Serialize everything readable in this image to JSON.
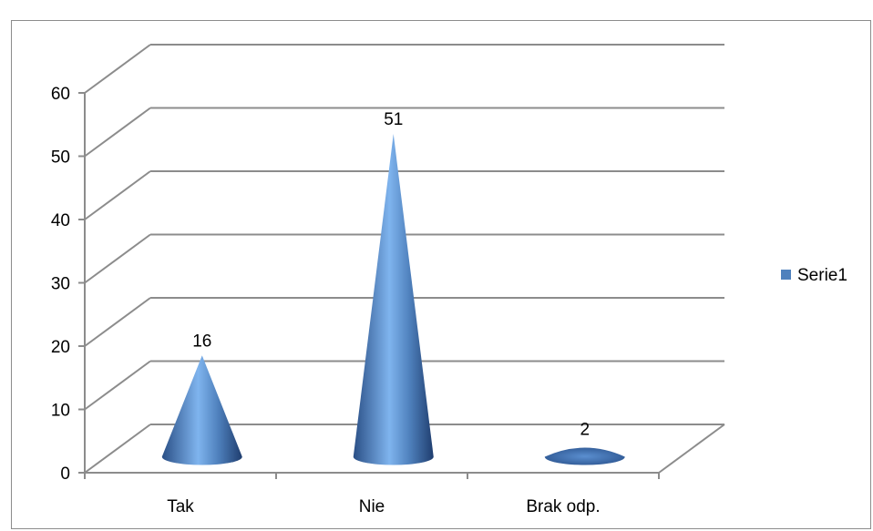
{
  "chart_data": {
    "type": "bar",
    "style": "3d-cone",
    "categories": [
      "Tak",
      "Nie",
      "Brak odp."
    ],
    "series": [
      {
        "name": "Serie1",
        "values": [
          16,
          51,
          2
        ],
        "color": "#4f81bd"
      }
    ],
    "data_labels": [
      "16",
      "51",
      "2"
    ],
    "ylim": [
      0,
      60
    ],
    "yticks": [
      "0",
      "10",
      "20",
      "30",
      "40",
      "50",
      "60"
    ],
    "grid": true,
    "legend": "right",
    "title": "",
    "xlabel": "",
    "ylabel": ""
  }
}
